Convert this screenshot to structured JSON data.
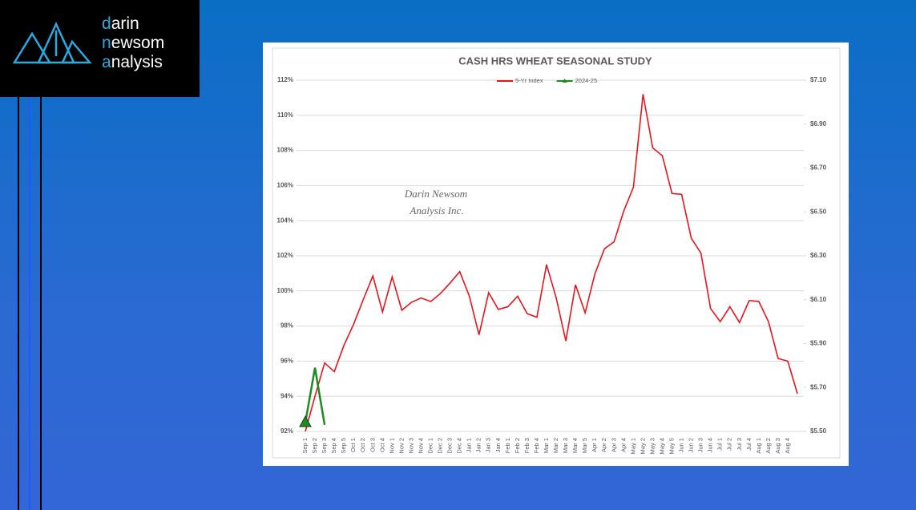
{
  "logo": {
    "lines": [
      "darin",
      "newsom",
      "analysis"
    ]
  },
  "chart_data": {
    "type": "line",
    "title": "CASH HRS WHEAT SEASONAL STUDY",
    "watermark": [
      "Darin Newsom",
      "Analysis Inc."
    ],
    "categories": [
      "Sep 1",
      "Sep 2",
      "Sep 3",
      "Sep 4",
      "Sep 5",
      "Oct 1",
      "Oct 2",
      "Oct 3",
      "Oct 4",
      "Nov 1",
      "Nov 2",
      "Nov 3",
      "Nov 4",
      "Dec 1",
      "Dec 2",
      "Dec 3",
      "Dec 4",
      "Jan 1",
      "Jan 2",
      "Jan 3",
      "Jan 4",
      "Feb 1",
      "Feb 2",
      "Feb 3",
      "Feb 4",
      "Mar 1",
      "Mar 2",
      "Mar 3",
      "Mar 4",
      "Mar 5",
      "Apr 1",
      "Apr 2",
      "Apr 3",
      "Apr 4",
      "May 1",
      "May 2",
      "May 3",
      "May 4",
      "May 5",
      "Jun 1",
      "Jun 2",
      "Jun 3",
      "Jun 4",
      "Jul 1",
      "Jul 2",
      "Jul 3",
      "Jul 4",
      "Aug 1",
      "Aug 2",
      "Aug 3",
      "Aug 4",
      null
    ],
    "series": [
      {
        "name": "5-Yr Index",
        "color": "#e8141c",
        "values": [
          92.0,
          94.0,
          95.9,
          95.4,
          96.9,
          98.1,
          99.5,
          100.85,
          98.8,
          100.8,
          98.9,
          99.35,
          99.6,
          99.4,
          99.85,
          100.45,
          101.1,
          99.7,
          97.5,
          99.9,
          98.95,
          99.1,
          99.7,
          98.7,
          98.5,
          101.5,
          99.6,
          97.15,
          100.35,
          98.75,
          100.95,
          102.4,
          102.8,
          104.55,
          105.9,
          111.2,
          108.15,
          107.7,
          105.55,
          105.5,
          103.0,
          102.15,
          99.0,
          98.25,
          99.1,
          98.2,
          99.45,
          99.4,
          98.25,
          96.15,
          96.0,
          94.15
        ]
      },
      {
        "name": "2024-25",
        "color": "#1f8a1f",
        "axis": "y2",
        "values": [
          5.54,
          5.79,
          5.53,
          null,
          null,
          null,
          null,
          null,
          null,
          null,
          null,
          null,
          null,
          null,
          null,
          null,
          null,
          null,
          null,
          null,
          null,
          null,
          null,
          null,
          null,
          null,
          null,
          null,
          null,
          null,
          null,
          null,
          null,
          null,
          null,
          null,
          null,
          null,
          null,
          null,
          null,
          null,
          null,
          null,
          null,
          null,
          null,
          null,
          null,
          null,
          null,
          null
        ]
      }
    ],
    "ylim": [
      92,
      112
    ],
    "yticks": [
      {
        "value": 92,
        "label": "92%"
      },
      {
        "value": 94,
        "label": "94%"
      },
      {
        "value": 96,
        "label": "96%"
      },
      {
        "value": 98,
        "label": "98%"
      },
      {
        "value": 100,
        "label": "100%"
      },
      {
        "value": 102,
        "label": "102%"
      },
      {
        "value": 104,
        "label": "104%"
      },
      {
        "value": 106,
        "label": "106%"
      },
      {
        "value": 108,
        "label": "108%"
      },
      {
        "value": 110,
        "label": "110%"
      },
      {
        "value": 112,
        "label": "112%"
      }
    ],
    "y2lim": [
      5.5,
      7.1
    ],
    "y2ticks": [
      {
        "value": 5.5,
        "label": "$5.50"
      },
      {
        "value": 5.7,
        "label": "$5.70"
      },
      {
        "value": 5.9,
        "label": "$5.90"
      },
      {
        "value": 6.1,
        "label": "$6.10"
      },
      {
        "value": 6.3,
        "label": "$6.30"
      },
      {
        "value": 6.5,
        "label": "$6.50"
      },
      {
        "value": 6.7,
        "label": "$6.70"
      },
      {
        "value": 6.9,
        "label": "$6.90"
      },
      {
        "value": 7.1,
        "label": "$7.10"
      }
    ],
    "grid": true,
    "legend": "top"
  }
}
